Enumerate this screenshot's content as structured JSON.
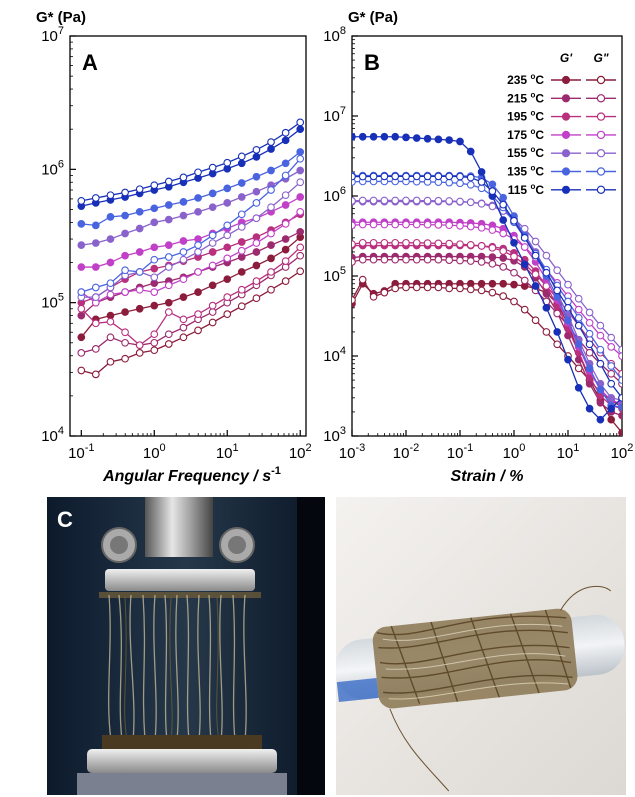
{
  "colors": {
    "T235": "#8c1c3c",
    "T215": "#9c2a6e",
    "T195": "#b8307e",
    "T175": "#c040c8",
    "T155": "#8a62cc",
    "T135": "#4a64e0",
    "T115": "#1830b8"
  },
  "panel_c_label": "C",
  "chart_data": [
    {
      "panel": "A",
      "type": "line",
      "ylabel": "G* (Pa)",
      "xlabel": "Angular Frequency / s",
      "xlabel_sup": "-1",
      "xscale": "log",
      "yscale": "log",
      "xlim": [
        0.07,
        120
      ],
      "ylim": [
        10000,
        10000000
      ],
      "xticks": [
        "10^-1",
        "10^0",
        "10^1",
        "10^2"
      ],
      "yticks": [
        "10^4",
        "10^5",
        "10^6",
        "10^7"
      ],
      "x": [
        0.1,
        0.158,
        0.251,
        0.398,
        0.631,
        1,
        1.58,
        2.51,
        3.98,
        6.31,
        10,
        15.8,
        25.1,
        39.8,
        63.1,
        100
      ],
      "series": [
        {
          "temp": "235",
          "kind": "G'",
          "values": [
            55000,
            75000,
            80000,
            85000,
            90000,
            95000,
            100000,
            110000,
            120000,
            135000,
            150000,
            170000,
            190000,
            215000,
            250000,
            310000
          ]
        },
        {
          "temp": "235",
          "kind": "G''",
          "values": [
            31000,
            29000,
            36000,
            38000,
            42000,
            44000,
            49000,
            55000,
            62000,
            71000,
            82000,
            94000,
            108000,
            125000,
            145000,
            172000
          ]
        },
        {
          "temp": "215",
          "kind": "G'",
          "values": [
            80000,
            100000,
            110000,
            120000,
            130000,
            140000,
            145000,
            155000,
            170000,
            185000,
            200000,
            220000,
            240000,
            270000,
            300000,
            340000
          ]
        },
        {
          "temp": "215",
          "kind": "G''",
          "values": [
            42000,
            45000,
            55000,
            50000,
            48000,
            50000,
            58000,
            65000,
            75000,
            85000,
            100000,
            115000,
            135000,
            160000,
            185000,
            225000
          ]
        },
        {
          "temp": "195",
          "kind": "G'",
          "values": [
            100000,
            110000,
            130000,
            150000,
            170000,
            180000,
            190000,
            205000,
            220000,
            240000,
            260000,
            285000,
            310000,
            350000,
            400000,
            460000
          ]
        },
        {
          "temp": "195",
          "kind": "G''",
          "values": [
            90000,
            70000,
            72000,
            60000,
            48000,
            58000,
            85000,
            75000,
            82000,
            95000,
            110000,
            125000,
            145000,
            170000,
            205000,
            260000
          ]
        },
        {
          "temp": "175",
          "kind": "G'",
          "values": [
            185000,
            185000,
            200000,
            225000,
            240000,
            260000,
            270000,
            290000,
            300000,
            330000,
            360000,
            400000,
            430000,
            480000,
            540000,
            620000
          ]
        },
        {
          "temp": "175",
          "kind": "G''",
          "values": [
            120000,
            100000,
            115000,
            120000,
            125000,
            120000,
            135000,
            150000,
            170000,
            190000,
            215000,
            245000,
            280000,
            330000,
            390000,
            480000
          ]
        },
        {
          "temp": "155",
          "kind": "G'",
          "values": [
            270000,
            280000,
            300000,
            330000,
            360000,
            400000,
            420000,
            450000,
            480000,
            520000,
            560000,
            620000,
            680000,
            760000,
            850000,
            980000
          ]
        },
        {
          "temp": "155",
          "kind": "G''",
          "values": [
            110000,
            110000,
            130000,
            160000,
            170000,
            155000,
            185000,
            210000,
            240000,
            280000,
            320000,
            370000,
            430000,
            520000,
            640000,
            800000
          ]
        },
        {
          "temp": "135",
          "kind": "G'",
          "values": [
            390000,
            380000,
            440000,
            450000,
            480000,
            510000,
            540000,
            570000,
            610000,
            660000,
            720000,
            790000,
            880000,
            980000,
            1110000,
            1350000
          ]
        },
        {
          "temp": "135",
          "kind": "G''",
          "values": [
            120000,
            130000,
            140000,
            175000,
            170000,
            210000,
            220000,
            240000,
            270000,
            320000,
            380000,
            460000,
            560000,
            700000,
            900000,
            1200000
          ]
        },
        {
          "temp": "115",
          "kind": "G'",
          "values": [
            530000,
            560000,
            590000,
            620000,
            660000,
            700000,
            740000,
            800000,
            860000,
            930000,
            1010000,
            1110000,
            1240000,
            1420000,
            1650000,
            2000000
          ]
        },
        {
          "temp": "115",
          "kind": "G''",
          "values": [
            580000,
            610000,
            640000,
            670000,
            710000,
            760000,
            810000,
            870000,
            950000,
            1030000,
            1120000,
            1250000,
            1400000,
            1600000,
            1880000,
            2250000
          ]
        }
      ]
    },
    {
      "panel": "B",
      "type": "line",
      "ylabel": "G* (Pa)",
      "xlabel": "Strain / %",
      "xscale": "log",
      "yscale": "log",
      "xlim": [
        0.001,
        100
      ],
      "ylim": [
        1000,
        100000000
      ],
      "xticks": [
        "10^-3",
        "10^-2",
        "10^-1",
        "10^0",
        "10^1",
        "10^2"
      ],
      "yticks": [
        "10^3",
        "10^4",
        "10^5",
        "10^6",
        "10^7",
        "10^8"
      ],
      "legend": {
        "col_gp": "G'",
        "col_gpp": "G\"",
        "entries": [
          "235 °C",
          "215 °C",
          "195 °C",
          "175 °C",
          "155 °C",
          "135 °C",
          "115 °C"
        ],
        "unit_sup": "o",
        "position": "top-right"
      },
      "x": [
        0.001,
        0.00158,
        0.00251,
        0.00398,
        0.00631,
        0.01,
        0.0158,
        0.0251,
        0.0398,
        0.0631,
        0.1,
        0.158,
        0.251,
        0.398,
        0.631,
        1,
        1.58,
        2.51,
        3.98,
        6.31,
        10,
        15.8,
        25.1,
        39.8,
        63.1,
        100
      ],
      "series": [
        {
          "temp": "235",
          "kind": "G'",
          "values": [
            45000,
            80000,
            60000,
            65000,
            80000,
            80000,
            80000,
            80000,
            80000,
            80000,
            80000,
            80000,
            80000,
            80000,
            80000,
            78000,
            75000,
            70000,
            62000,
            45000,
            25000,
            11000,
            5000,
            2800,
            1600,
            1100
          ]
        },
        {
          "temp": "235",
          "kind": "G''",
          "values": [
            50000,
            90000,
            55000,
            62000,
            70000,
            72000,
            72000,
            72000,
            72000,
            70000,
            70000,
            68000,
            66000,
            62000,
            56000,
            48000,
            38000,
            28000,
            20000,
            14000,
            10000,
            7000,
            5000,
            3500,
            2800,
            2300
          ]
        },
        {
          "temp": "215",
          "kind": "G'",
          "values": [
            170000,
            175000,
            175000,
            175000,
            175000,
            175000,
            175000,
            175000,
            175000,
            175000,
            175000,
            175000,
            175000,
            172000,
            168000,
            155000,
            130000,
            95000,
            60000,
            35000,
            18000,
            9000,
            4500,
            2600,
            2000,
            1800
          ]
        },
        {
          "temp": "215",
          "kind": "G''",
          "values": [
            150000,
            160000,
            160000,
            160000,
            160000,
            160000,
            160000,
            160000,
            160000,
            158000,
            156000,
            154000,
            150000,
            142000,
            130000,
            110000,
            88000,
            66000,
            48000,
            34000,
            24000,
            16000,
            11000,
            8000,
            6000,
            4500
          ]
        },
        {
          "temp": "195",
          "kind": "G'",
          "values": [
            240000,
            240000,
            240000,
            240000,
            240000,
            240000,
            240000,
            240000,
            240000,
            240000,
            240000,
            240000,
            238000,
            232000,
            220000,
            195000,
            160000,
            115000,
            75000,
            42000,
            22000,
            11000,
            5500,
            3200,
            2400,
            2200
          ]
        },
        {
          "temp": "195",
          "kind": "G''",
          "values": [
            250000,
            260000,
            260000,
            260000,
            260000,
            260000,
            260000,
            258000,
            256000,
            254000,
            250000,
            245000,
            238000,
            225000,
            205000,
            175000,
            140000,
            105000,
            75000,
            52000,
            36000,
            24000,
            16000,
            11000,
            8000,
            6000
          ]
        },
        {
          "temp": "175",
          "kind": "G'",
          "values": [
            470000,
            470000,
            470000,
            470000,
            470000,
            470000,
            470000,
            470000,
            470000,
            470000,
            465000,
            460000,
            450000,
            430000,
            390000,
            320000,
            230000,
            150000,
            90000,
            50000,
            26000,
            13000,
            6500,
            3800,
            2800,
            2500
          ]
        },
        {
          "temp": "175",
          "kind": "G''",
          "values": [
            430000,
            440000,
            440000,
            440000,
            440000,
            440000,
            440000,
            438000,
            436000,
            432000,
            425000,
            415000,
            400000,
            375000,
            340000,
            290000,
            230000,
            170000,
            120000,
            82000,
            56000,
            38000,
            26000,
            18000,
            13000,
            10000
          ]
        },
        {
          "temp": "155",
          "kind": "G'",
          "values": [
            850000,
            850000,
            850000,
            850000,
            850000,
            850000,
            850000,
            850000,
            850000,
            850000,
            845000,
            835000,
            810000,
            760000,
            660000,
            500000,
            330000,
            200000,
            115000,
            62000,
            32000,
            16000,
            8000,
            4500,
            3000,
            2800
          ]
        },
        {
          "temp": "155",
          "kind": "G''",
          "values": [
            870000,
            880000,
            880000,
            880000,
            880000,
            880000,
            878000,
            876000,
            872000,
            866000,
            855000,
            835000,
            800000,
            740000,
            650000,
            520000,
            390000,
            270000,
            180000,
            118000,
            78000,
            52000,
            35000,
            24000,
            17000,
            12000
          ]
        },
        {
          "temp": "135",
          "kind": "G'",
          "values": [
            1800000,
            1800000,
            1800000,
            1800000,
            1800000,
            1800000,
            1800000,
            1800000,
            1800000,
            1800000,
            1790000,
            1770000,
            1700000,
            1400000,
            950000,
            560000,
            320000,
            180000,
            100000,
            55000,
            28000,
            14000,
            7000,
            3800,
            2400,
            2300
          ]
        },
        {
          "temp": "135",
          "kind": "G''",
          "values": [
            1500000,
            1520000,
            1520000,
            1520000,
            1520000,
            1520000,
            1510000,
            1500000,
            1490000,
            1470000,
            1440000,
            1380000,
            1250000,
            1000000,
            720000,
            470000,
            300000,
            190000,
            120000,
            76000,
            48000,
            30000,
            19000,
            12000,
            7500,
            5000
          ]
        },
        {
          "temp": "115",
          "kind": "G'",
          "values": [
            5500000,
            5500000,
            5500000,
            5500000,
            5500000,
            5400000,
            5300000,
            5200000,
            5100000,
            5000000,
            4800000,
            3600000,
            2000000,
            1000000,
            500000,
            260000,
            140000,
            75000,
            40000,
            20000,
            9000,
            4000,
            2200,
            1600,
            2200,
            3000
          ]
        },
        {
          "temp": "115",
          "kind": "G''",
          "values": [
            1750000,
            1750000,
            1760000,
            1760000,
            1760000,
            1760000,
            1760000,
            1760000,
            1760000,
            1760000,
            1750000,
            1700000,
            1500000,
            1150000,
            780000,
            490000,
            300000,
            180000,
            110000,
            66000,
            40000,
            24000,
            14000,
            8000,
            4500,
            3000
          ]
        }
      ]
    }
  ]
}
